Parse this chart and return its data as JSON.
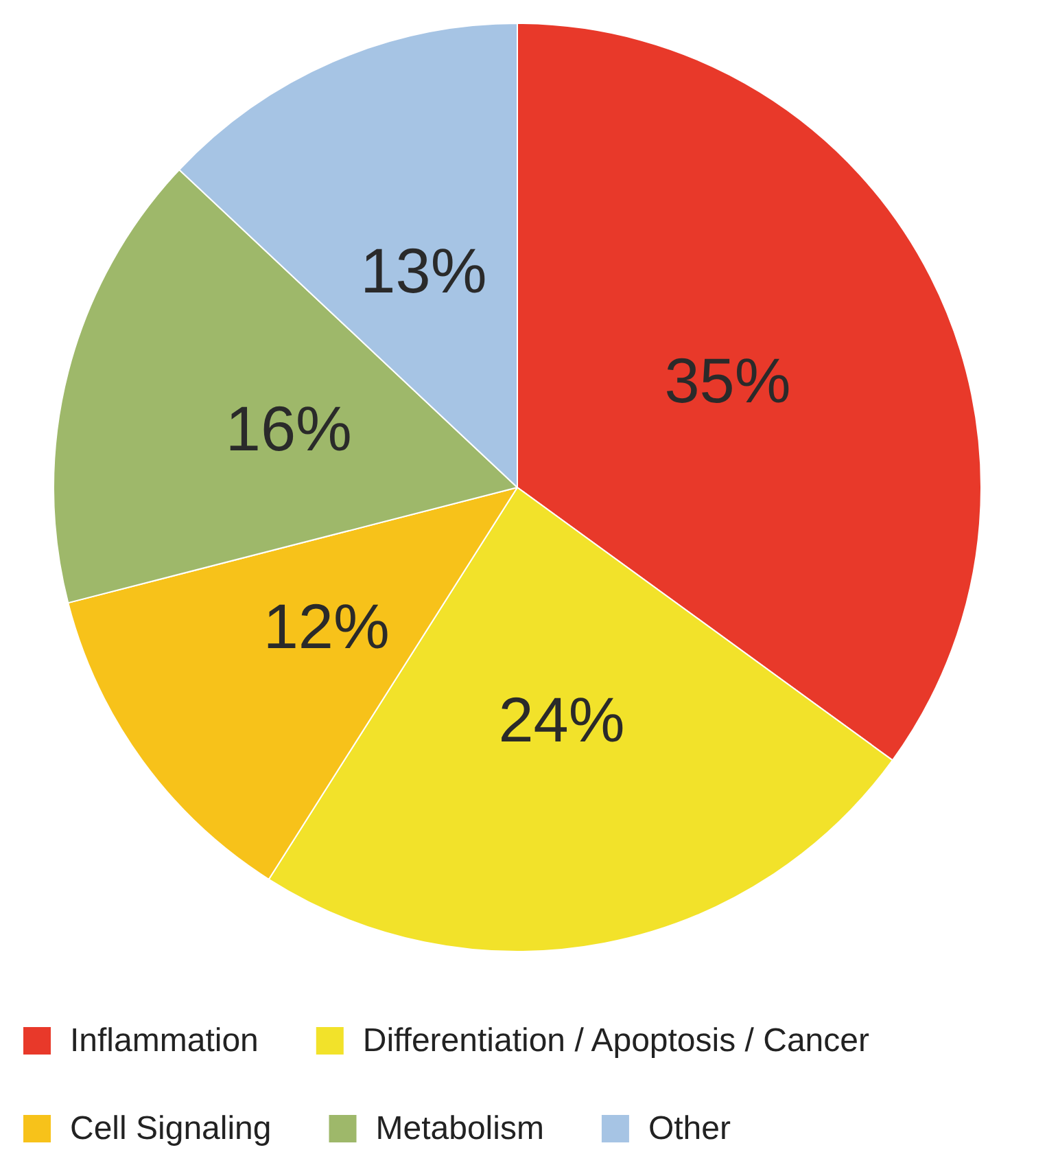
{
  "chart_data": {
    "type": "pie",
    "categories": [
      "Inflammation",
      "Differentiation / Apoptosis / Cancer",
      "Cell Signaling",
      "Metabolism",
      "Other"
    ],
    "values": [
      35,
      24,
      12,
      16,
      13
    ],
    "colors": [
      "#e8392a",
      "#f2e22a",
      "#f7c21a",
      "#9eb86a",
      "#a6c4e4"
    ],
    "value_labels": [
      "35%",
      "24%",
      "12%",
      "16%",
      "13%"
    ],
    "legend": "bottom"
  }
}
